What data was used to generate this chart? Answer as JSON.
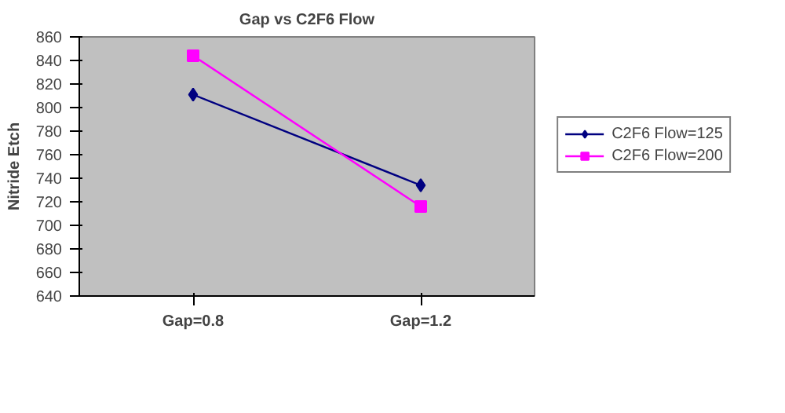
{
  "chart_data": {
    "type": "line",
    "title": "Gap vs C2F6 Flow",
    "ylabel": "Nitride Etch",
    "categories": [
      "Gap=0.8",
      "Gap=1.2"
    ],
    "series": [
      {
        "name": "C2F6 Flow=125",
        "color": "#000080",
        "values": [
          811,
          734
        ],
        "marker": "diamond"
      },
      {
        "name": "C2F6 Flow=200",
        "color": "#ff00ff",
        "values": [
          844,
          716
        ],
        "marker": "square"
      }
    ],
    "ylim": [
      640,
      860
    ],
    "yticks": [
      640,
      660,
      680,
      700,
      720,
      740,
      760,
      780,
      800,
      820,
      840,
      860
    ],
    "grid": false,
    "legend": "right"
  }
}
